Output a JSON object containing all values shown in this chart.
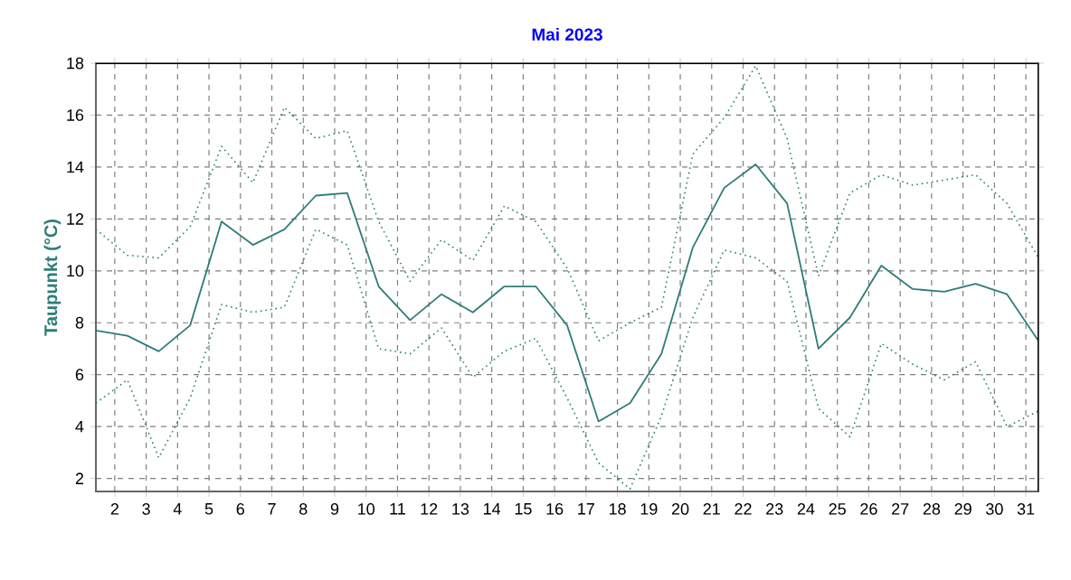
{
  "chart_data": {
    "type": "line",
    "title": "Mai 2023",
    "ylabel": "Taupunkt (°C)",
    "x": [
      1.4,
      2.4,
      3.4,
      4.4,
      5.4,
      6.4,
      7.4,
      8.4,
      9.4,
      10.4,
      11.4,
      12.4,
      13.4,
      14.4,
      15.4,
      16.4,
      17.4,
      18.4,
      19.4,
      20.4,
      21.4,
      22.4,
      23.4,
      24.4,
      25.4,
      26.4,
      27.4,
      28.4,
      29.4,
      30.4,
      31.4
    ],
    "xlim": [
      1.4,
      31.4
    ],
    "xticks": [
      2,
      3,
      4,
      5,
      6,
      7,
      8,
      9,
      10,
      11,
      12,
      13,
      14,
      15,
      16,
      17,
      18,
      19,
      20,
      21,
      22,
      23,
      24,
      25,
      26,
      27,
      28,
      29,
      30,
      31
    ],
    "ylim": [
      1.5,
      18
    ],
    "yticks": [
      2,
      4,
      6,
      8,
      10,
      12,
      14,
      16,
      18
    ],
    "grid": true,
    "marker": "none",
    "series": [
      {
        "color": "#2e7d78",
        "line_style": "dotted",
        "values": [
          11.6,
          10.6,
          10.5,
          11.7,
          14.8,
          13.4,
          16.3,
          15.1,
          15.4,
          11.9,
          9.6,
          11.2,
          10.4,
          12.5,
          11.9,
          10.1,
          7.3,
          8.0,
          8.6,
          14.5,
          15.9,
          17.9,
          15.1,
          9.8,
          13.0,
          13.7,
          13.3,
          13.5,
          13.7,
          12.6,
          10.5
        ]
      },
      {
        "color": "#2e7d78",
        "line_style": "solid",
        "values": [
          7.7,
          7.5,
          6.9,
          7.9,
          11.9,
          11.0,
          11.6,
          12.9,
          13.0,
          9.4,
          8.1,
          9.1,
          8.4,
          9.4,
          9.4,
          7.9,
          4.2,
          4.9,
          6.8,
          10.9,
          13.2,
          14.1,
          12.6,
          7.0,
          8.2,
          10.2,
          9.3,
          9.2,
          9.5,
          9.1,
          7.3
        ]
      },
      {
        "color": "#2e7d78",
        "line_style": "dotted",
        "values": [
          4.9,
          5.8,
          2.8,
          5.1,
          8.7,
          8.4,
          8.6,
          11.6,
          11.0,
          7.0,
          6.8,
          7.8,
          5.9,
          6.9,
          7.4,
          5.1,
          2.6,
          1.6,
          4.4,
          8.2,
          10.8,
          10.5,
          9.6,
          4.7,
          3.6,
          7.2,
          6.4,
          5.8,
          6.5,
          4.0,
          4.6
        ]
      }
    ]
  }
}
